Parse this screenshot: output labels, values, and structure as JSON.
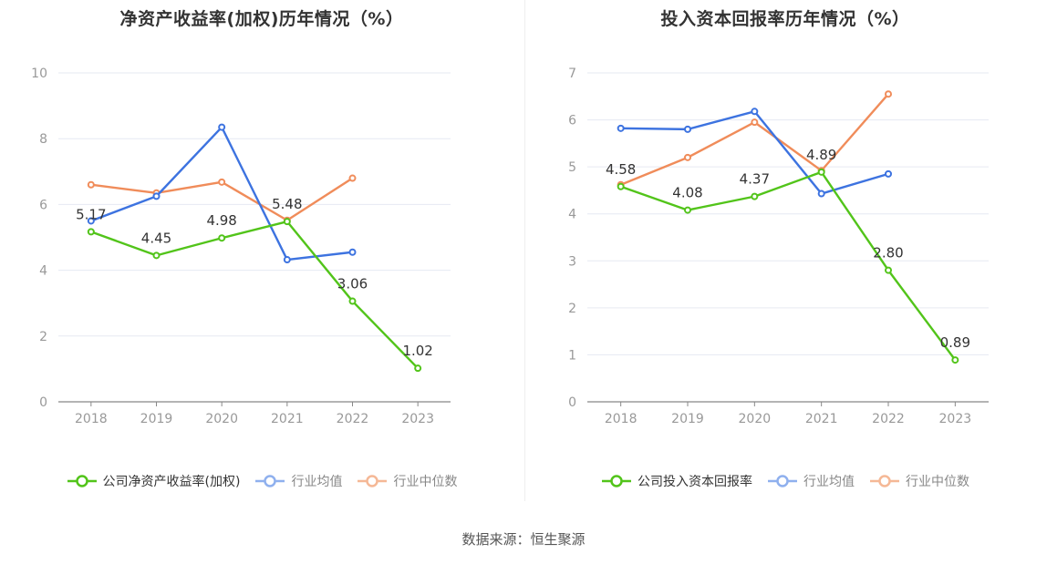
{
  "source_label": "数据来源：恒生聚源",
  "chart_data": [
    {
      "type": "line",
      "title": "净资产收益率(加权)历年情况（%）",
      "categories": [
        "2018",
        "2019",
        "2020",
        "2021",
        "2022",
        "2023"
      ],
      "ylim": [
        0,
        10
      ],
      "yticks": [
        0,
        2,
        4,
        6,
        8,
        10
      ],
      "grid": true,
      "legend_position": "bottom",
      "series": [
        {
          "name": "公司净资产收益率(加权)",
          "color": "#52c41a",
          "values": [
            5.17,
            4.45,
            4.98,
            5.48,
            3.06,
            1.02
          ],
          "labels": [
            "5.17",
            "4.45",
            "4.98",
            "5.48",
            "3.06",
            "1.02"
          ]
        },
        {
          "name": "行业均值",
          "color": "#3d73e0",
          "values": [
            5.5,
            6.25,
            8.35,
            4.32,
            4.55,
            null
          ]
        },
        {
          "name": "行业中位数",
          "color": "#f08c5a",
          "values": [
            6.6,
            6.35,
            6.68,
            5.52,
            6.8,
            null
          ]
        }
      ]
    },
    {
      "type": "line",
      "title": "投入资本回报率历年情况（%）",
      "categories": [
        "2018",
        "2019",
        "2020",
        "2021",
        "2022",
        "2023"
      ],
      "ylim": [
        0,
        7
      ],
      "yticks": [
        0,
        1,
        2,
        3,
        4,
        5,
        6,
        7
      ],
      "grid": true,
      "legend_position": "bottom",
      "series": [
        {
          "name": "公司投入资本回报率",
          "color": "#52c41a",
          "values": [
            4.58,
            4.08,
            4.37,
            4.89,
            2.8,
            0.89
          ],
          "labels": [
            "4.58",
            "4.08",
            "4.37",
            "4.89",
            "2.80",
            "0.89"
          ]
        },
        {
          "name": "行业均值",
          "color": "#3d73e0",
          "values": [
            5.82,
            5.8,
            6.18,
            4.43,
            4.85,
            null
          ]
        },
        {
          "name": "行业中位数",
          "color": "#f08c5a",
          "values": [
            4.62,
            5.2,
            5.95,
            4.92,
            6.55,
            null
          ]
        }
      ]
    }
  ]
}
